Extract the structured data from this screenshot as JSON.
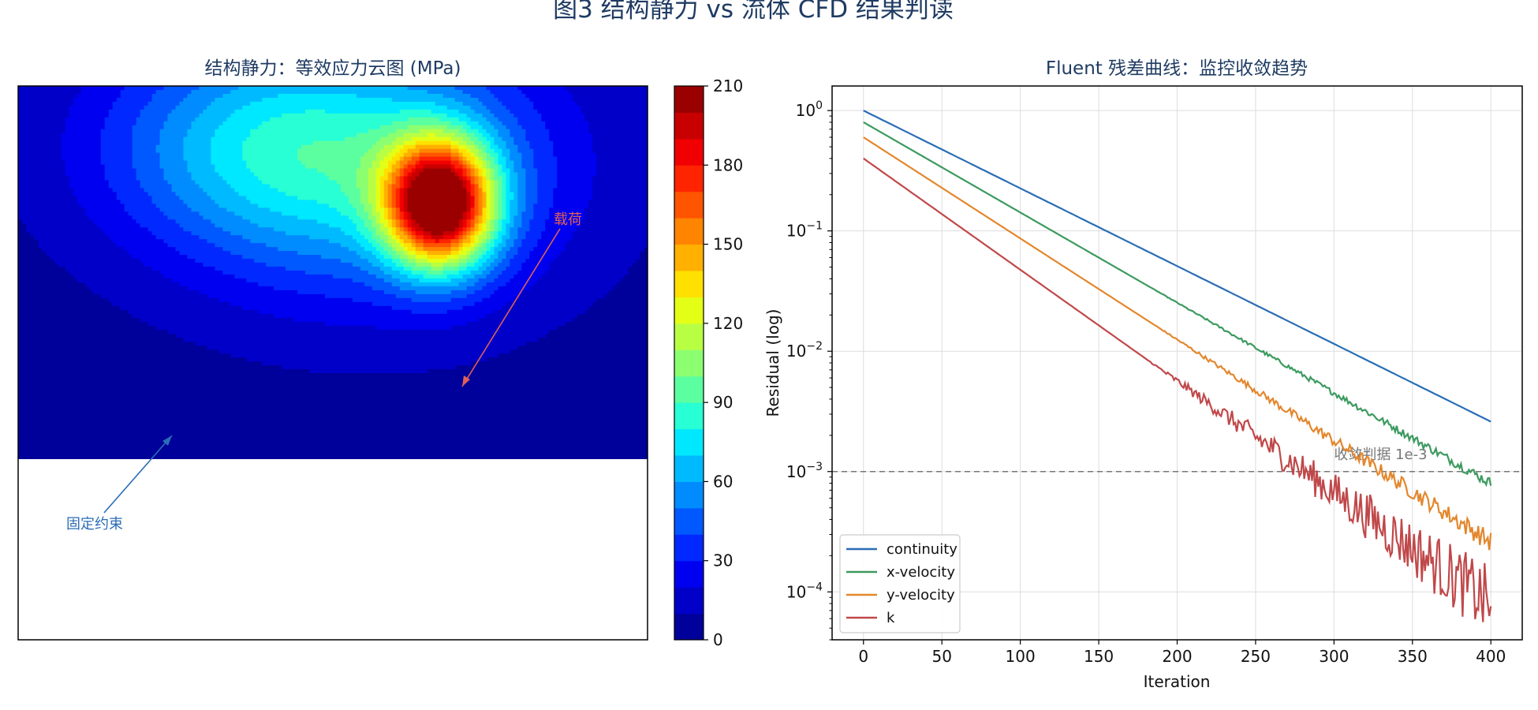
{
  "figure_title": "图3  结构静力 vs 流体 CFD 结果判读",
  "chart_data": [
    {
      "type": "heatmap",
      "title": "结构静力：等效应力云图 (MPa)",
      "colorbar": {
        "ticks": [
          0,
          30,
          60,
          90,
          120,
          150,
          180,
          210
        ],
        "range": [
          0,
          210
        ],
        "levels": 21,
        "colors": [
          "#00009a",
          "#0000c8",
          "#0000f0",
          "#0028ff",
          "#0058ff",
          "#008cff",
          "#00baff",
          "#00e8ff",
          "#28ffd4",
          "#5cffa0",
          "#8cff70",
          "#b8ff44",
          "#e4ff16",
          "#ffe000",
          "#ffb000",
          "#ff8400",
          "#ff5400",
          "#ff2400",
          "#f00000",
          "#c80000",
          "#9a0000"
        ]
      },
      "stress_field": {
        "peak": {
          "x": 0.67,
          "y": 0.81,
          "value": 210
        },
        "background_value": 5
      },
      "annotations": [
        {
          "text": "载荷",
          "color": "#e0605a"
        },
        {
          "text": "固定约束",
          "color": "#2a6db5"
        }
      ]
    },
    {
      "type": "line",
      "title": "Fluent 残差曲线：监控收敛趋势",
      "xlabel": "Iteration",
      "ylabel": "Residual (log)",
      "xlim": [
        -20,
        420
      ],
      "ylim": [
        4e-05,
        1.6
      ],
      "yscale": "log",
      "xticks": [
        0,
        50,
        100,
        150,
        200,
        250,
        300,
        350,
        400
      ],
      "yticks": [
        {
          "value": 1,
          "base": "10",
          "exp": "0"
        },
        {
          "value": 0.1,
          "base": "10",
          "exp": "−1"
        },
        {
          "value": 0.01,
          "base": "10",
          "exp": "−2"
        },
        {
          "value": 0.001,
          "base": "10",
          "exp": "−3"
        },
        {
          "value": 0.0001,
          "base": "10",
          "exp": "−4"
        }
      ],
      "grid": true,
      "legend_position": "lower-left",
      "threshold": {
        "value": 0.001,
        "label": "收敛判据 1e-3",
        "color": "#777777"
      },
      "series": [
        {
          "name": "continuity",
          "color": "#2a6db5",
          "start": 1.0,
          "end": 0.0026,
          "noise": 0.0
        },
        {
          "name": "x-velocity",
          "color": "#3c9a5f",
          "start": 0.8,
          "end": 0.0008,
          "noise": 0.04
        },
        {
          "name": "y-velocity",
          "color": "#e3872d",
          "start": 0.6,
          "end": 0.00026,
          "noise": 0.08
        },
        {
          "name": "k",
          "color": "#c0484a",
          "start": 0.4,
          "end": 8e-05,
          "noise": 0.28
        }
      ]
    }
  ]
}
